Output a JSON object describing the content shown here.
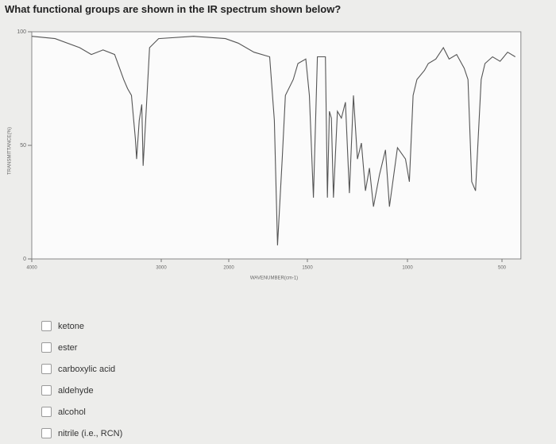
{
  "question": "What functional groups are shown in the IR spectrum shown below?",
  "chart_data": {
    "type": "line",
    "xlabel": "WAVENUMBER(cm-1)",
    "ylabel": "TRANSMITTANCE(%)",
    "xlim": [
      4000,
      400
    ],
    "ylim": [
      0,
      100
    ],
    "xticks": [
      4000,
      3000,
      2000,
      1500,
      1000,
      500
    ],
    "yticks": [
      0,
      50,
      100
    ],
    "color": "#555555",
    "x": [
      4000,
      3820,
      3630,
      3540,
      3450,
      3360,
      3290,
      3260,
      3230,
      3200,
      3190,
      3170,
      3150,
      3140,
      3120,
      3090,
      3020,
      2520,
      2050,
      1940,
      1840,
      1740,
      1710,
      1690,
      1660,
      1640,
      1590,
      1560,
      1510,
      1490,
      1470,
      1450,
      1410,
      1400,
      1390,
      1380,
      1370,
      1350,
      1330,
      1310,
      1290,
      1270,
      1250,
      1230,
      1210,
      1190,
      1170,
      1140,
      1110,
      1090,
      1050,
      1010,
      990,
      970,
      950,
      910,
      890,
      850,
      810,
      780,
      740,
      700,
      680,
      660,
      640,
      610,
      590,
      550,
      510,
      470,
      430
    ],
    "values": [
      98,
      97,
      93,
      90,
      92,
      90,
      79,
      75,
      72,
      53,
      44,
      61,
      68,
      41,
      61,
      93,
      97,
      98,
      97,
      95,
      91,
      89,
      61,
      6,
      44,
      72,
      79,
      86,
      88,
      72,
      27,
      89,
      89,
      27,
      65,
      62,
      27,
      65,
      62,
      69,
      29,
      72,
      44,
      51,
      30,
      40,
      23,
      37,
      48,
      23,
      49,
      44,
      34,
      72,
      79,
      83,
      86,
      88,
      93,
      88,
      90,
      84,
      79,
      34,
      30,
      79,
      86,
      89,
      87,
      91,
      89
    ]
  },
  "options": [
    "ketone",
    "ester",
    "carboxylic acid",
    "aldehyde",
    "alcohol",
    "nitrile (i.e., RCN)"
  ]
}
